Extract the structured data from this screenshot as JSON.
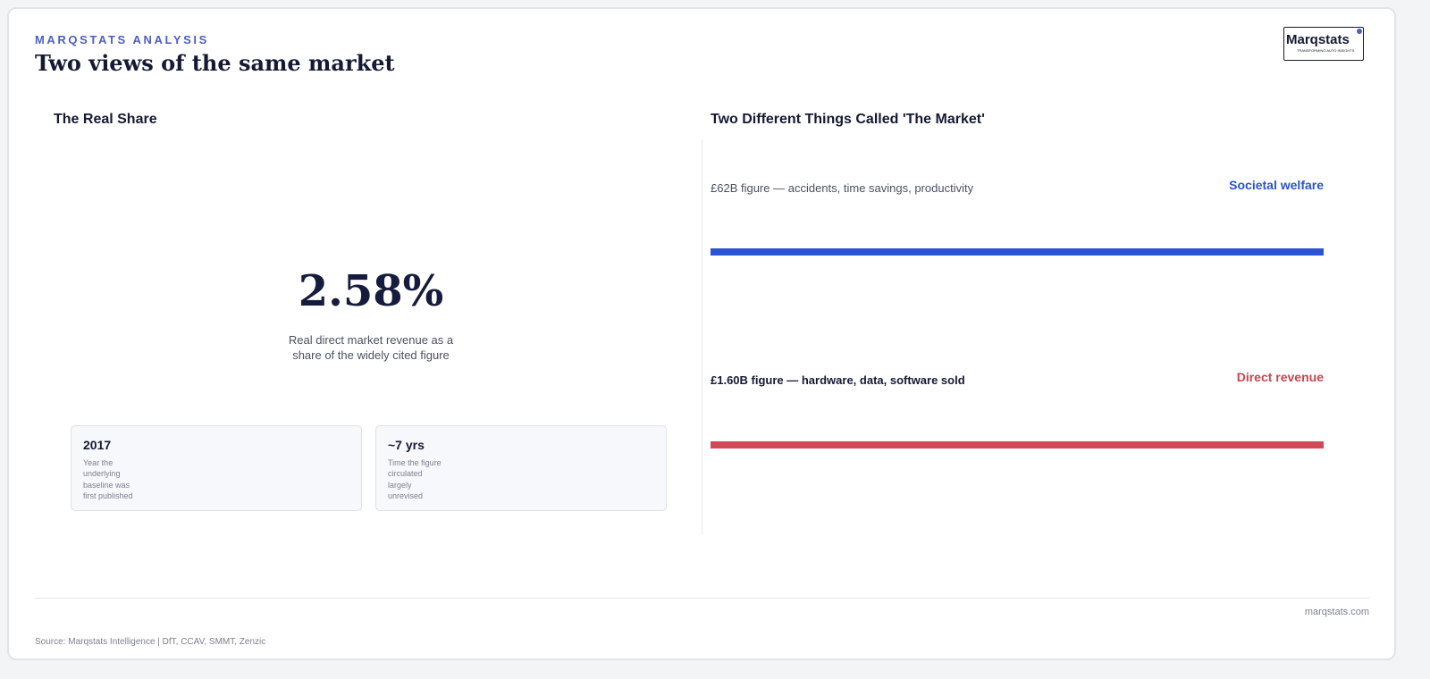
{
  "header": {
    "kicker": "MARQSTATS ANALYSIS",
    "title": "Two views of the same market"
  },
  "logo": {
    "name": "Marqstats",
    "tagline": "TRANSFORMING AUTO INSIGHTS"
  },
  "left_panel": {
    "heading": "The Real Share",
    "stat": "2.58%",
    "caption": "Real direct market revenue as a share of the widely cited figure",
    "cards": [
      {
        "value": "2017",
        "label": "Year the underlying baseline was first published"
      },
      {
        "value": "~7 yrs",
        "label": "Time the figure circulated largely unrevised"
      }
    ]
  },
  "right_panel": {
    "heading": "Two Different Things Called 'The Market'",
    "rows": [
      {
        "label": "£62B figure — accidents, time savings, productivity",
        "tag": "Societal welfare"
      },
      {
        "label": "£1.60B figure — hardware, data, software sold",
        "tag": "Direct revenue"
      }
    ]
  },
  "footer": {
    "site": "marqstats.com",
    "source": "Source: Marqstats Intelligence | DfT, CCAV, SMMT, Zenzic"
  }
}
